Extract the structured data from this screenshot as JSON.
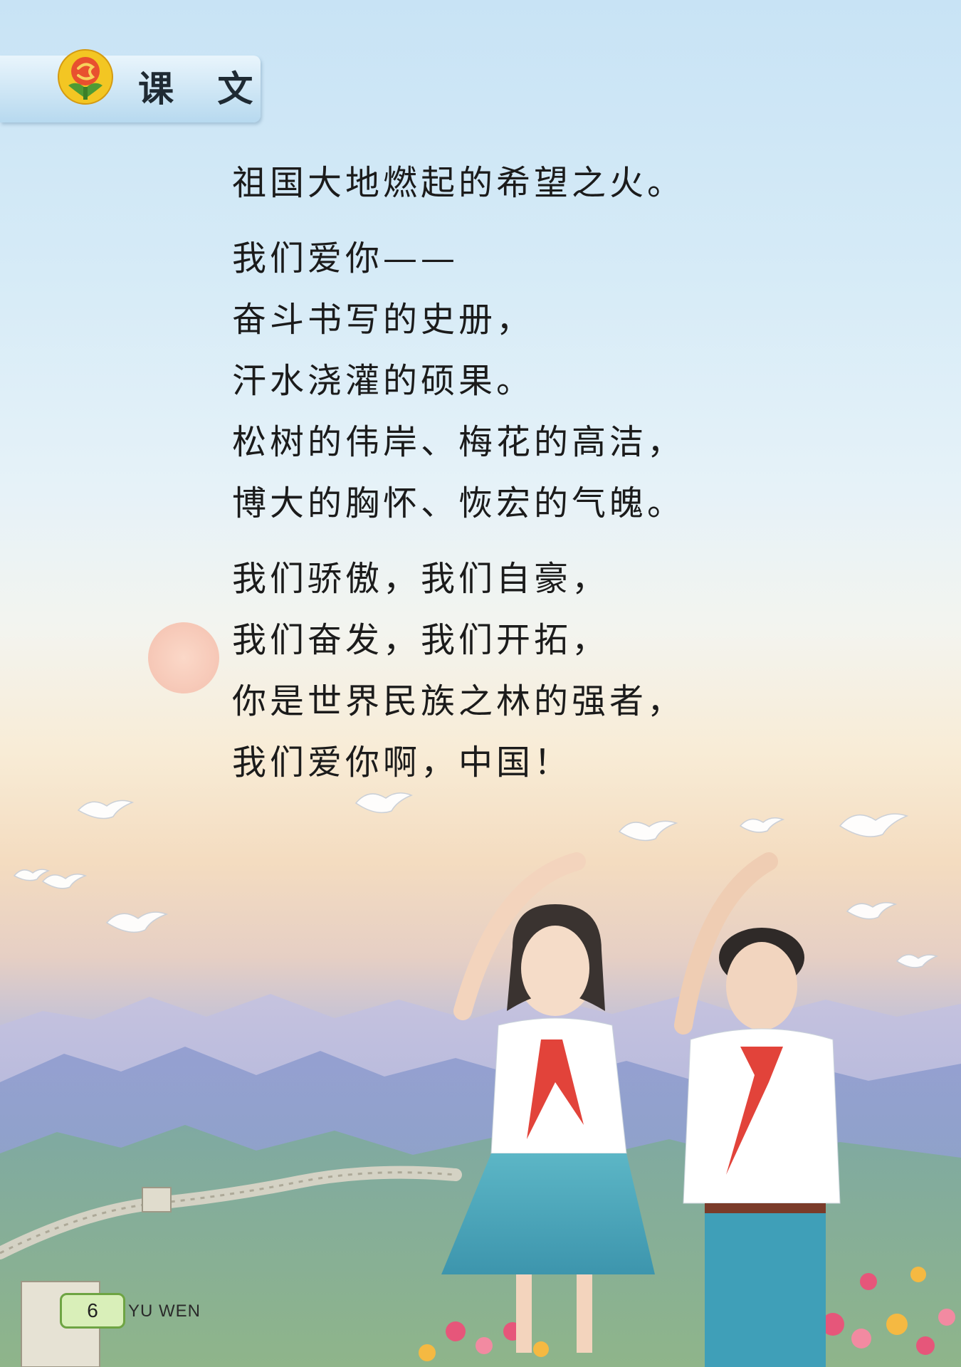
{
  "section": {
    "title": "课 文",
    "logo_icon": "textbook-logo-icon",
    "tab_color": "#b7d9ef"
  },
  "poem": {
    "stanzas": [
      {
        "lines": [
          "祖国大地燃起的希望之火。"
        ]
      },
      {
        "lines": [
          "我们爱你——",
          "奋斗书写的史册，",
          "汗水浇灌的硕果。",
          "松树的伟岸、梅花的高洁，",
          "博大的胸怀、恢宏的气魄。"
        ]
      },
      {
        "lines": [
          "我们骄傲，我们自豪，",
          "我们奋发，我们开拓，",
          "你是世界民族之林的强者，",
          "我们爱你啊，中国！"
        ]
      }
    ]
  },
  "illustration": {
    "elements": [
      "sun",
      "doves",
      "mountains",
      "great-wall",
      "girl-saluting",
      "boy-saluting",
      "flowers"
    ]
  },
  "footer": {
    "page_number": "6",
    "running_head": "YU WEN",
    "accent_color": "#6ea443"
  }
}
